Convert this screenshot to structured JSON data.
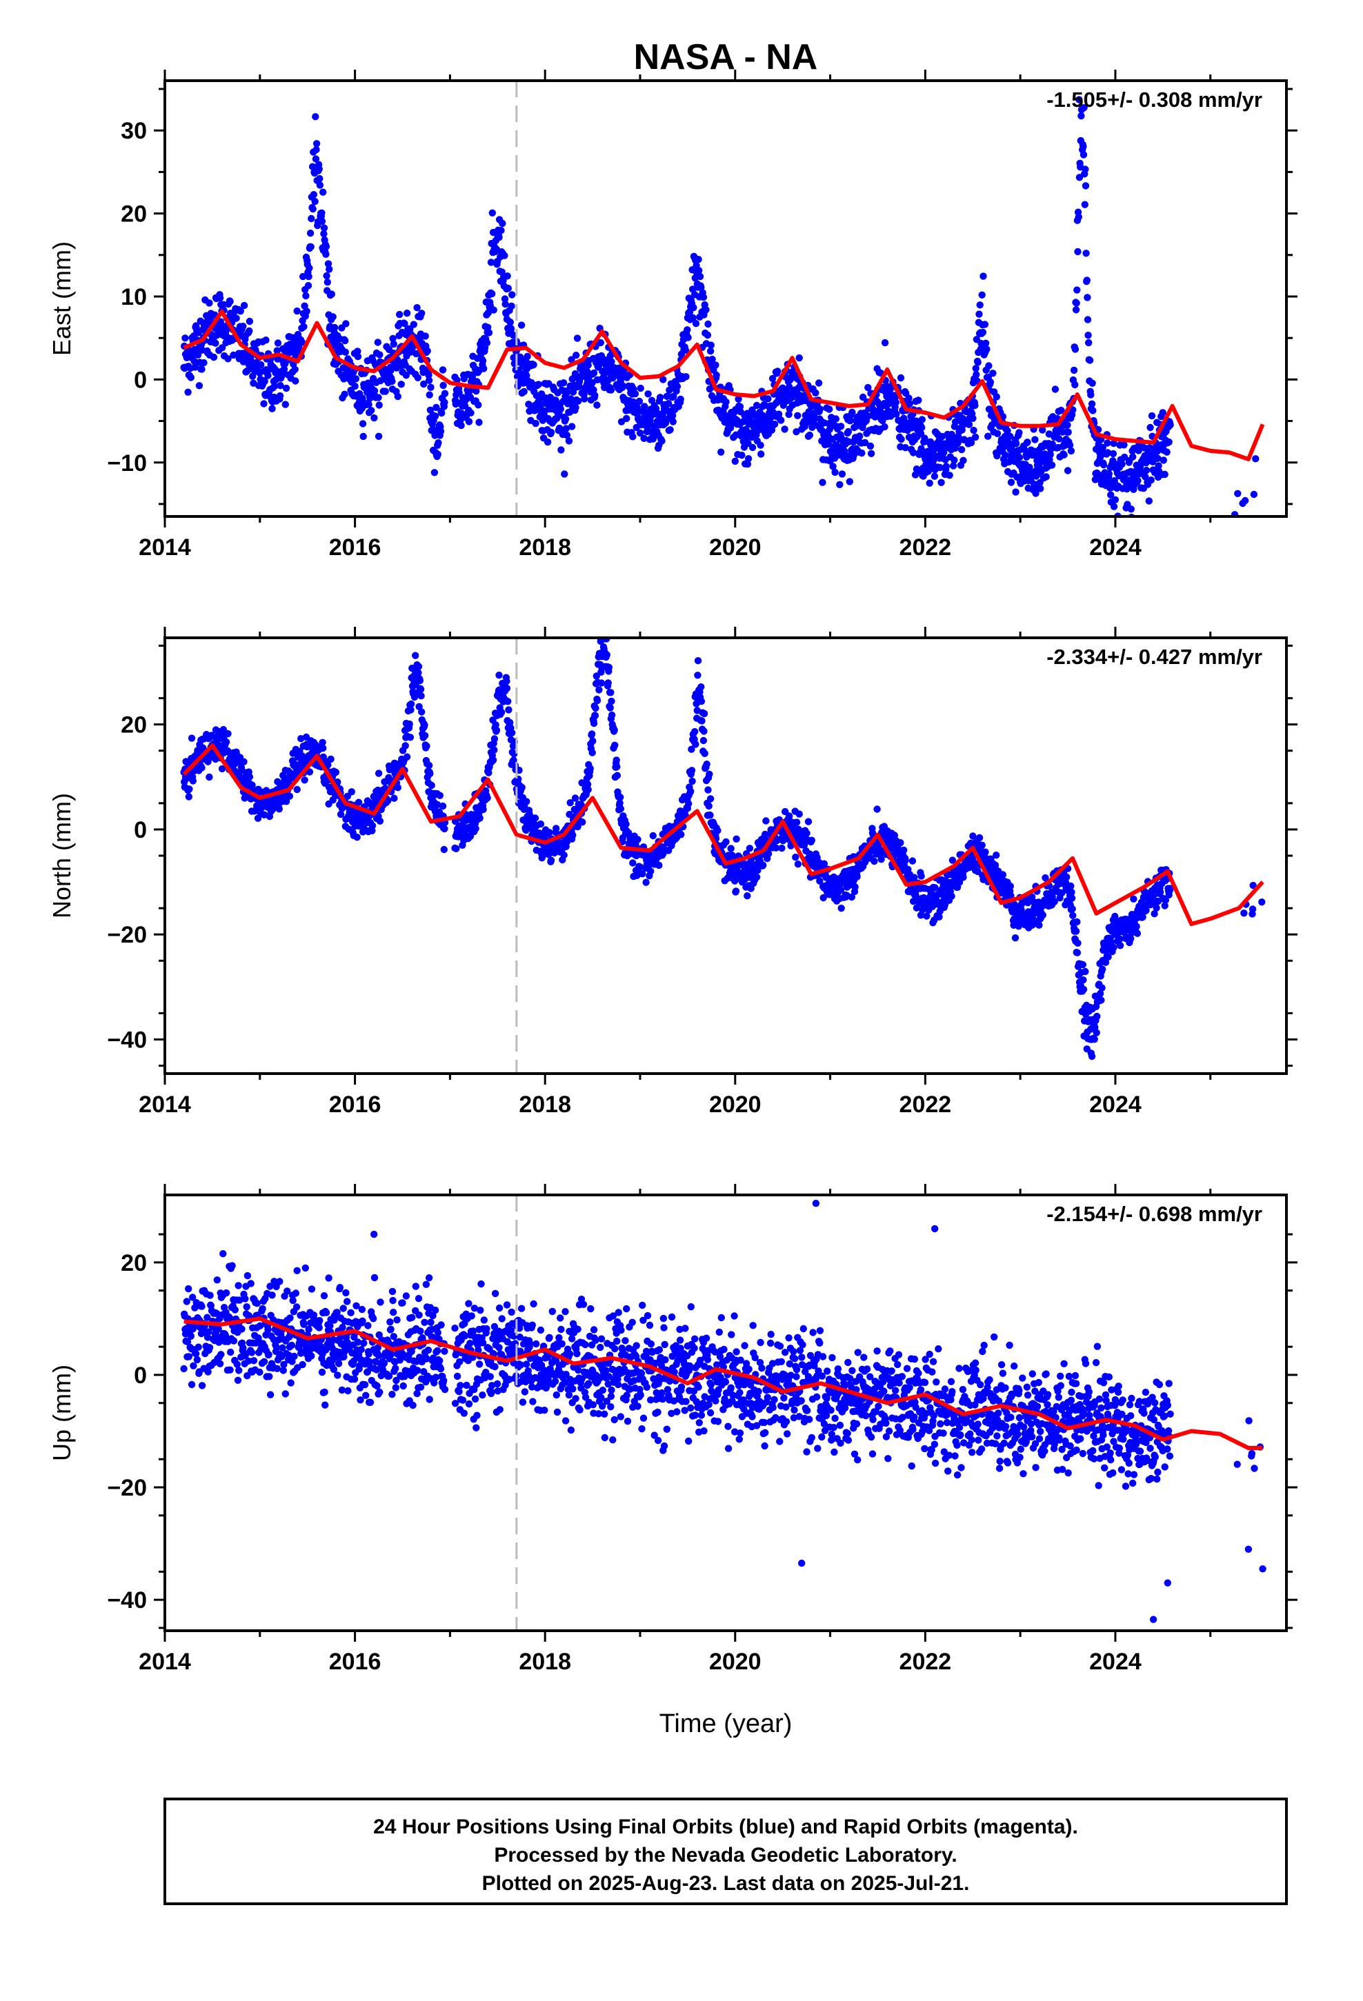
{
  "chart_data": {
    "title": "NASA - NA",
    "type": "scatter",
    "x_unit": "year",
    "xlabel": "Time (year)",
    "xlim": [
      2014.0,
      2025.8
    ],
    "x_ticks": [
      "2014",
      "2016",
      "2018",
      "2020",
      "2022",
      "2024"
    ],
    "equipment_change_year": 2017.7,
    "final_orbits_color": "#0000ff",
    "model_color": "#ff0000",
    "panels": [
      {
        "id": "east",
        "ylabel": "East (mm)",
        "ylim": [
          -16.5,
          36
        ],
        "y_ticks": [
          "30",
          "20",
          "10",
          "0",
          "−10"
        ],
        "y_tick_values": [
          30,
          20,
          10,
          0,
          -10
        ],
        "rate": "-1.505+/- 0.308 mm/yr",
        "trend": {
          "x": [
            2014.2,
            2025.55
          ],
          "y": [
            4.5,
            -11.0
          ]
        },
        "seasonal": {
          "amp": 3.0,
          "peak": 0.6,
          "noise": 2.0
        },
        "spikes": [
          {
            "x": 2015.6,
            "y": 25.5,
            "w": 0.1
          },
          {
            "x": 2017.5,
            "y": 15.5,
            "w": 0.12
          },
          {
            "x": 2019.6,
            "y": 10.5,
            "w": 0.12
          },
          {
            "x": 2022.6,
            "y": 6.5,
            "w": 0.06
          },
          {
            "x": 2023.65,
            "y": 35.0,
            "w": 0.06
          },
          {
            "x": 2016.85,
            "y": -9.0,
            "w": 0.06
          },
          {
            "x": 2025.3,
            "y": -15.5,
            "w": 0.06
          }
        ],
        "model": {
          "x": [
            2014.2,
            2014.4,
            2014.6,
            2014.8,
            2015.0,
            2015.2,
            2015.4,
            2015.6,
            2015.8,
            2016.0,
            2016.2,
            2016.4,
            2016.6,
            2016.8,
            2017.0,
            2017.2,
            2017.4,
            2017.6,
            2017.8,
            2018.0,
            2018.2,
            2018.4,
            2018.6,
            2018.8,
            2019.0,
            2019.2,
            2019.4,
            2019.6,
            2019.8,
            2020.0,
            2020.2,
            2020.4,
            2020.6,
            2020.8,
            2021.0,
            2021.2,
            2021.4,
            2021.6,
            2021.8,
            2022.0,
            2022.2,
            2022.4,
            2022.6,
            2022.8,
            2023.0,
            2023.2,
            2023.4,
            2023.6,
            2023.8,
            2024.0,
            2024.2,
            2024.4,
            2024.6,
            2024.8,
            2025.0,
            2025.2,
            2025.4,
            2025.55
          ],
          "y": [
            3.8,
            4.8,
            8.2,
            4.2,
            2.6,
            3.0,
            2.2,
            6.8,
            2.6,
            1.4,
            1.0,
            2.6,
            5.2,
            1.2,
            -0.4,
            -0.8,
            -1.0,
            3.6,
            3.8,
            2.0,
            1.4,
            2.4,
            5.8,
            2.0,
            0.2,
            0.4,
            1.6,
            4.2,
            -1.2,
            -1.8,
            -2.0,
            -1.4,
            2.6,
            -2.4,
            -2.8,
            -3.2,
            -3.0,
            1.2,
            -3.6,
            -4.0,
            -4.6,
            -3.2,
            -0.2,
            -5.2,
            -5.6,
            -5.6,
            -5.4,
            -1.8,
            -6.6,
            -7.2,
            -7.4,
            -7.6,
            -3.2,
            -8.0,
            -8.6,
            -8.8,
            -9.6,
            -5.4
          ]
        }
      },
      {
        "id": "north",
        "ylabel": "North (mm)",
        "ylim": [
          -46.5,
          36.5
        ],
        "y_ticks": [
          "20",
          "0",
          "−20",
          "−40"
        ],
        "y_tick_values": [
          20,
          0,
          -20,
          -40
        ],
        "rate": "-2.334+/- 0.427 mm/yr",
        "trend": {
          "x": [
            2014.2,
            2025.55
          ],
          "y": [
            12.0,
            -18.0
          ]
        },
        "seasonal": {
          "amp": 5.0,
          "peak": 0.55,
          "noise": 1.8
        },
        "spikes": [
          {
            "x": 2016.65,
            "y": 29.0,
            "w": 0.1
          },
          {
            "x": 2017.55,
            "y": 24.0,
            "w": 0.12
          },
          {
            "x": 2018.62,
            "y": 35.0,
            "w": 0.12
          },
          {
            "x": 2019.62,
            "y": 25.0,
            "w": 0.08
          },
          {
            "x": 2023.72,
            "y": -45.0,
            "w": 0.15
          }
        ],
        "model": {
          "x": [
            2014.2,
            2014.5,
            2014.8,
            2015.0,
            2015.3,
            2015.6,
            2015.9,
            2016.2,
            2016.5,
            2016.8,
            2017.1,
            2017.4,
            2017.7,
            2018.0,
            2018.2,
            2018.5,
            2018.8,
            2019.1,
            2019.3,
            2019.6,
            2019.9,
            2020.1,
            2020.3,
            2020.5,
            2020.8,
            2021.0,
            2021.3,
            2021.5,
            2021.8,
            2022.0,
            2022.3,
            2022.5,
            2022.8,
            2023.0,
            2023.3,
            2023.55,
            2023.8,
            2024.0,
            2024.3,
            2024.55,
            2024.8,
            2025.0,
            2025.3,
            2025.55
          ],
          "y": [
            10.5,
            16.0,
            8.0,
            6.0,
            7.5,
            14.0,
            5.0,
            3.0,
            11.5,
            1.5,
            2.5,
            9.5,
            -1.0,
            -2.5,
            -1.0,
            6.0,
            -3.5,
            -4.0,
            -1.0,
            3.5,
            -6.5,
            -5.5,
            -4.0,
            1.5,
            -8.5,
            -7.5,
            -5.5,
            -1.0,
            -10.5,
            -10.0,
            -7.0,
            -3.5,
            -14.0,
            -13.0,
            -10.0,
            -5.5,
            -16.0,
            -14.0,
            -11.0,
            -8.0,
            -18.0,
            -17.0,
            -15.0,
            -10.0
          ]
        }
      },
      {
        "id": "up",
        "ylabel": "Up (mm)",
        "ylim": [
          -45.5,
          32.0
        ],
        "y_ticks": [
          "20",
          "0",
          "−20",
          "−40"
        ],
        "y_tick_values": [
          20,
          0,
          -20,
          -40
        ],
        "rate": "-2.154+/- 0.698 mm/yr",
        "trend": {
          "x": [
            2014.2,
            2025.55
          ],
          "y": [
            9.0,
            -12.0
          ]
        },
        "seasonal": {
          "amp": 0.9,
          "peak": 0.7,
          "noise": 4.5
        },
        "spikes": [],
        "outliers": [
          {
            "x": 2020.85,
            "y": 30.5
          },
          {
            "x": 2022.1,
            "y": 26.0
          },
          {
            "x": 2016.2,
            "y": 25.0
          },
          {
            "x": 2024.4,
            "y": -43.5
          },
          {
            "x": 2025.55,
            "y": -34.5
          },
          {
            "x": 2025.4,
            "y": -31.0
          },
          {
            "x": 2024.55,
            "y": -37.0
          },
          {
            "x": 2020.7,
            "y": -33.5
          }
        ],
        "model": {
          "x": [
            2014.2,
            2014.6,
            2015.0,
            2015.5,
            2016.0,
            2016.4,
            2016.8,
            2017.2,
            2017.6,
            2018.0,
            2018.3,
            2018.7,
            2019.1,
            2019.5,
            2019.8,
            2020.2,
            2020.5,
            2020.9,
            2021.2,
            2021.6,
            2022.0,
            2022.4,
            2022.8,
            2023.2,
            2023.5,
            2023.9,
            2024.2,
            2024.5,
            2024.8,
            2025.1,
            2025.4,
            2025.55
          ],
          "y": [
            9.5,
            9.0,
            10.0,
            6.5,
            7.8,
            4.5,
            6.0,
            4.0,
            2.5,
            4.5,
            2.0,
            3.0,
            1.5,
            -1.5,
            1.0,
            -0.5,
            -3.0,
            -1.5,
            -3.0,
            -5.0,
            -3.5,
            -7.0,
            -5.5,
            -7.0,
            -9.5,
            -8.0,
            -9.0,
            -11.5,
            -10.0,
            -10.5,
            -13.0,
            -13.0
          ]
        }
      }
    ],
    "footer": [
      "24 Hour Positions Using Final Orbits (blue) and Rapid Orbits (magenta).",
      "Processed by the Nevada Geodetic Laboratory.",
      "Plotted on 2025-Aug-23. Last data on 2025-Jul-21."
    ]
  }
}
